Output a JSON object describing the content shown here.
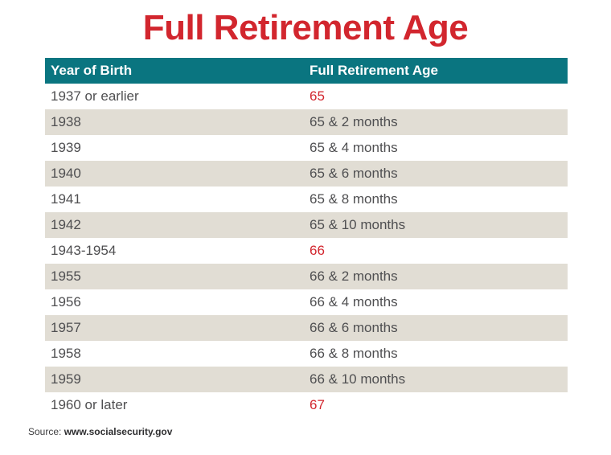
{
  "chart_data": {
    "type": "table",
    "title": "Full Retirement Age",
    "columns": [
      "Year of Birth",
      "Full Retirement Age"
    ],
    "rows": [
      [
        "1937 or earlier",
        "65"
      ],
      [
        "1938",
        "65 & 2 months"
      ],
      [
        "1939",
        "65 & 4 months"
      ],
      [
        "1940",
        "65 & 6 months"
      ],
      [
        "1941",
        "65 & 8 months"
      ],
      [
        "1942",
        "65 & 10 months"
      ],
      [
        "1943-1954",
        "66"
      ],
      [
        "1955",
        "66 & 2 months"
      ],
      [
        "1956",
        "66 & 4 months"
      ],
      [
        "1957",
        "66 & 6 months"
      ],
      [
        "1958",
        "66 & 8 months"
      ],
      [
        "1959",
        "66 & 10 months"
      ],
      [
        "1960 or later",
        "67"
      ]
    ],
    "highlighted_rows": [
      0,
      6,
      12
    ],
    "layout": {
      "row_striping": "even rows putty gray, odd rows white",
      "legend": "none",
      "grid": "off"
    }
  },
  "source": {
    "label": "Source:",
    "url": "www.socialsecurity.gov"
  },
  "colors": {
    "title_red": "#d2262e",
    "highlight_red": "#d2262e",
    "header_teal": "#0a7580",
    "row_alt_gray": "#e1ddd4",
    "row_text": "#4f4f51"
  }
}
